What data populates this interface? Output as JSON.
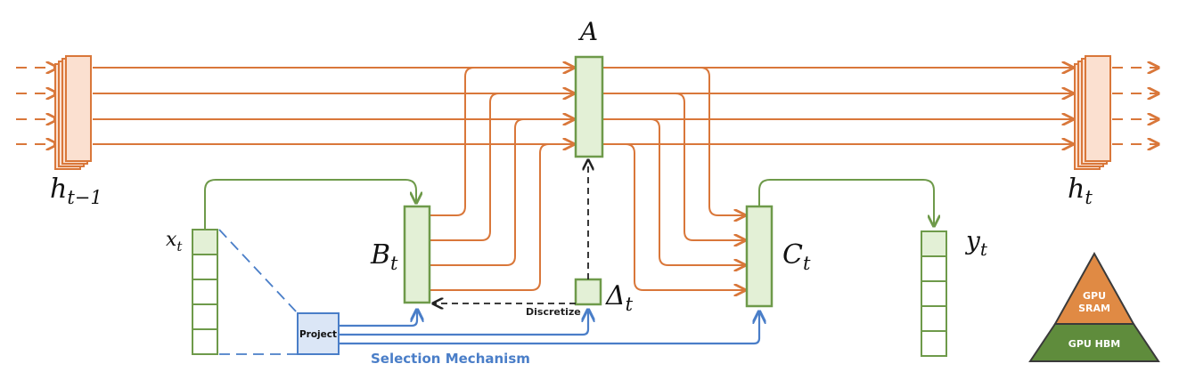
{
  "labels": {
    "h_prev_base": "h",
    "h_prev_sub": "t−1",
    "h_next_base": "h",
    "h_next_sub": "t",
    "A": "A",
    "B_base": "B",
    "B_sub": "t",
    "C_base": "C",
    "C_sub": "t",
    "x_base": "x",
    "x_sub": "t",
    "y_base": "y",
    "y_sub": "t",
    "delta_base": "Δ",
    "delta_sub": "t",
    "project": "Project",
    "discretize": "Discretize",
    "selection": "Selection Mechanism",
    "gpu_sram_line1": "GPU",
    "gpu_sram_line2": "SRAM",
    "gpu_hbm": "GPU HBM"
  },
  "colors": {
    "orange": "#d9773a",
    "orange_fill": "#fbe0d0",
    "green": "#6e9a4a",
    "green_fill": "#e3f0d6",
    "blue": "#4a7ec8",
    "blue_fill": "#dbe6f6",
    "pyramid_top": "#e08a44",
    "pyramid_bottom": "#5f8c3c"
  }
}
